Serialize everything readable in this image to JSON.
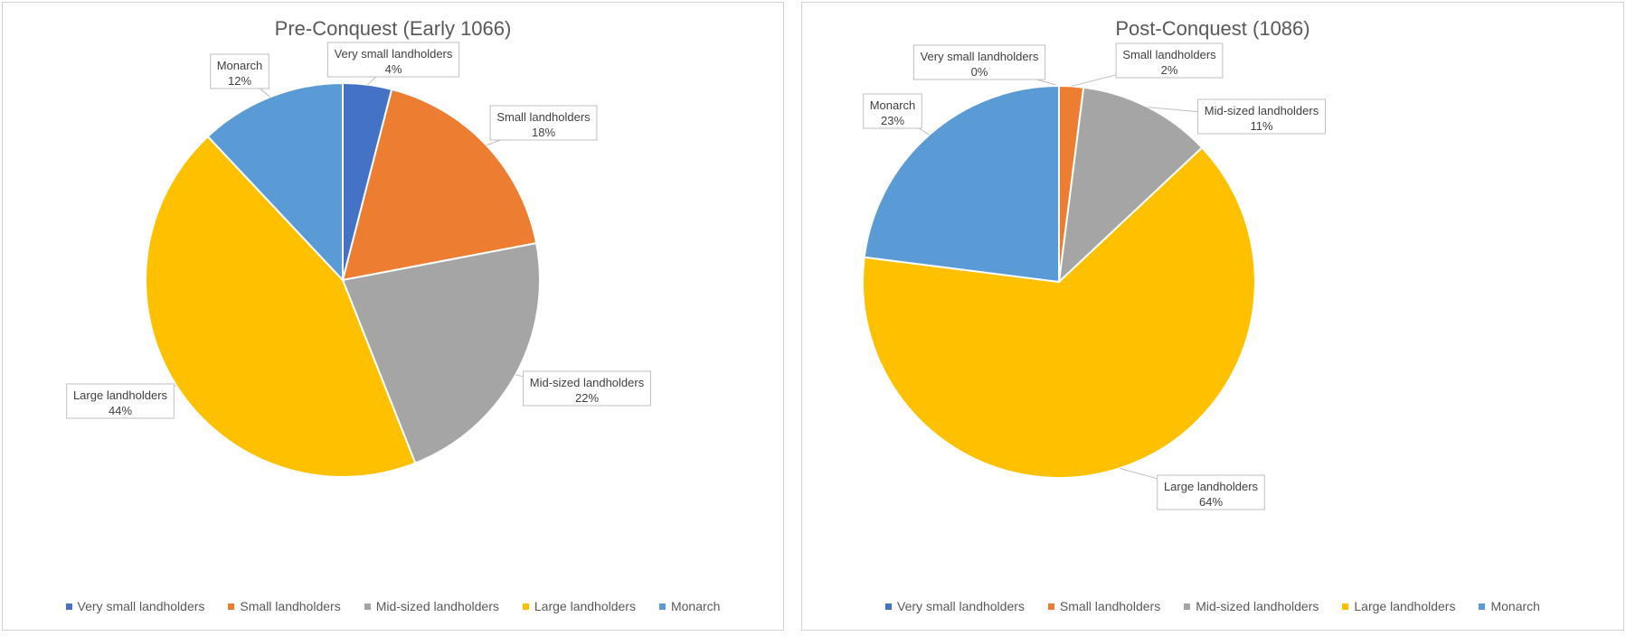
{
  "chart_data": [
    {
      "type": "pie",
      "title": "Pre-Conquest (Early 1066)",
      "categories": [
        "Very small landholders",
        "Small landholders",
        "Mid-sized landholders",
        "Large landholders",
        "Monarch"
      ],
      "values": [
        4,
        18,
        22,
        44,
        12
      ],
      "value_labels": [
        "4%",
        "18%",
        "22%",
        "44%",
        "12%"
      ],
      "colors": [
        "#4472C4",
        "#ED7D31",
        "#A5A5A5",
        "#FFC000",
        "#5B9BD5"
      ],
      "legend_position": "bottom"
    },
    {
      "type": "pie",
      "title": "Post-Conquest (1086)",
      "categories": [
        "Very small landholders",
        "Small landholders",
        "Mid-sized landholders",
        "Large landholders",
        "Monarch"
      ],
      "values": [
        0,
        2,
        11,
        64,
        23
      ],
      "value_labels": [
        "0%",
        "2%",
        "11%",
        "64%",
        "23%"
      ],
      "colors": [
        "#4472C4",
        "#ED7D31",
        "#A5A5A5",
        "#FFC000",
        "#5B9BD5"
      ],
      "legend_position": "bottom"
    }
  ]
}
